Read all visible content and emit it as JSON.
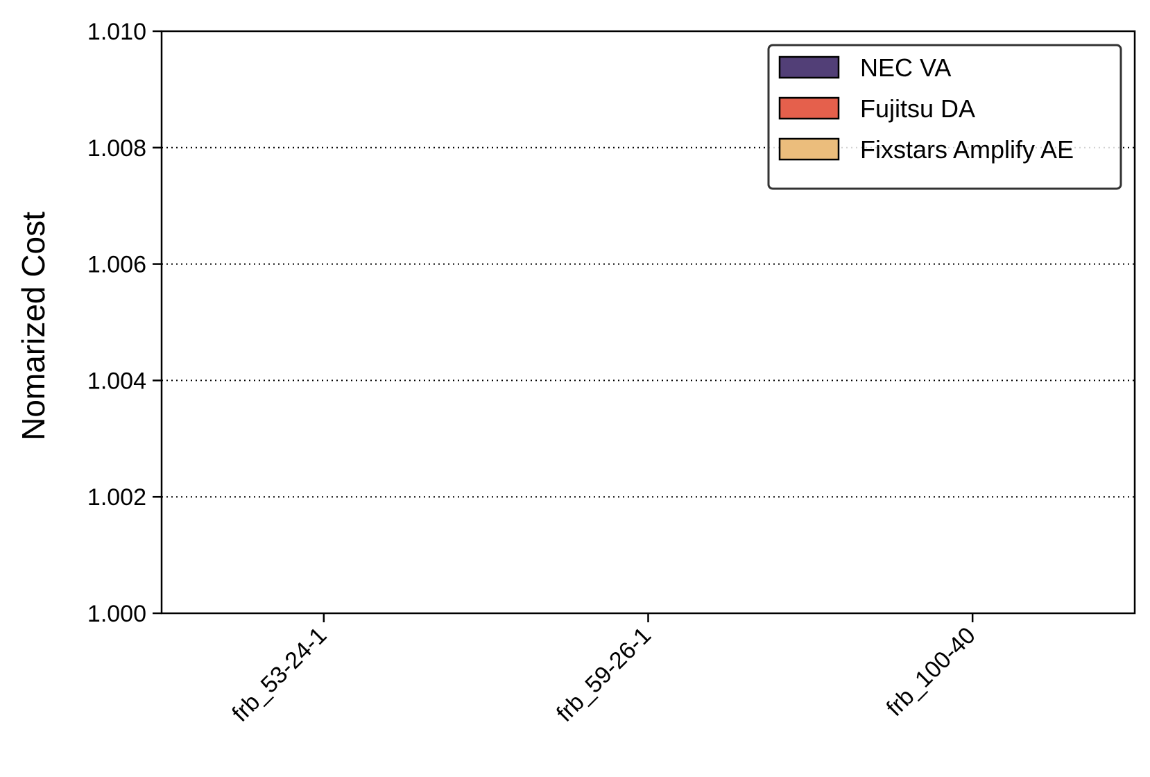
{
  "chart_data": {
    "type": "bar",
    "title": "",
    "xlabel": "",
    "ylabel": "Nomarized Cost",
    "categories": [
      "frb_53-24-1",
      "frb_59-26-1",
      "frb_100-40"
    ],
    "series": [
      {
        "name": "NEC VA",
        "color": "#523f77",
        "values": [
          1.0,
          1.0,
          1.0
        ]
      },
      {
        "name": "Fujitsu DA",
        "color": "#e5604c",
        "values": [
          1.0,
          1.0,
          1.0
        ]
      },
      {
        "name": "Fixstars Amplify AE",
        "color": "#ebbd7c",
        "values": [
          1.0,
          1.0,
          1.0
        ]
      }
    ],
    "ylim": [
      1.0,
      1.01
    ],
    "yticks": [
      "1.000",
      "1.002",
      "1.004",
      "1.006",
      "1.008",
      "1.010"
    ],
    "ytick_values": [
      1.0,
      1.002,
      1.004,
      1.006,
      1.008,
      1.01
    ],
    "grid": "y-dotted",
    "legend_position": "top-right"
  }
}
